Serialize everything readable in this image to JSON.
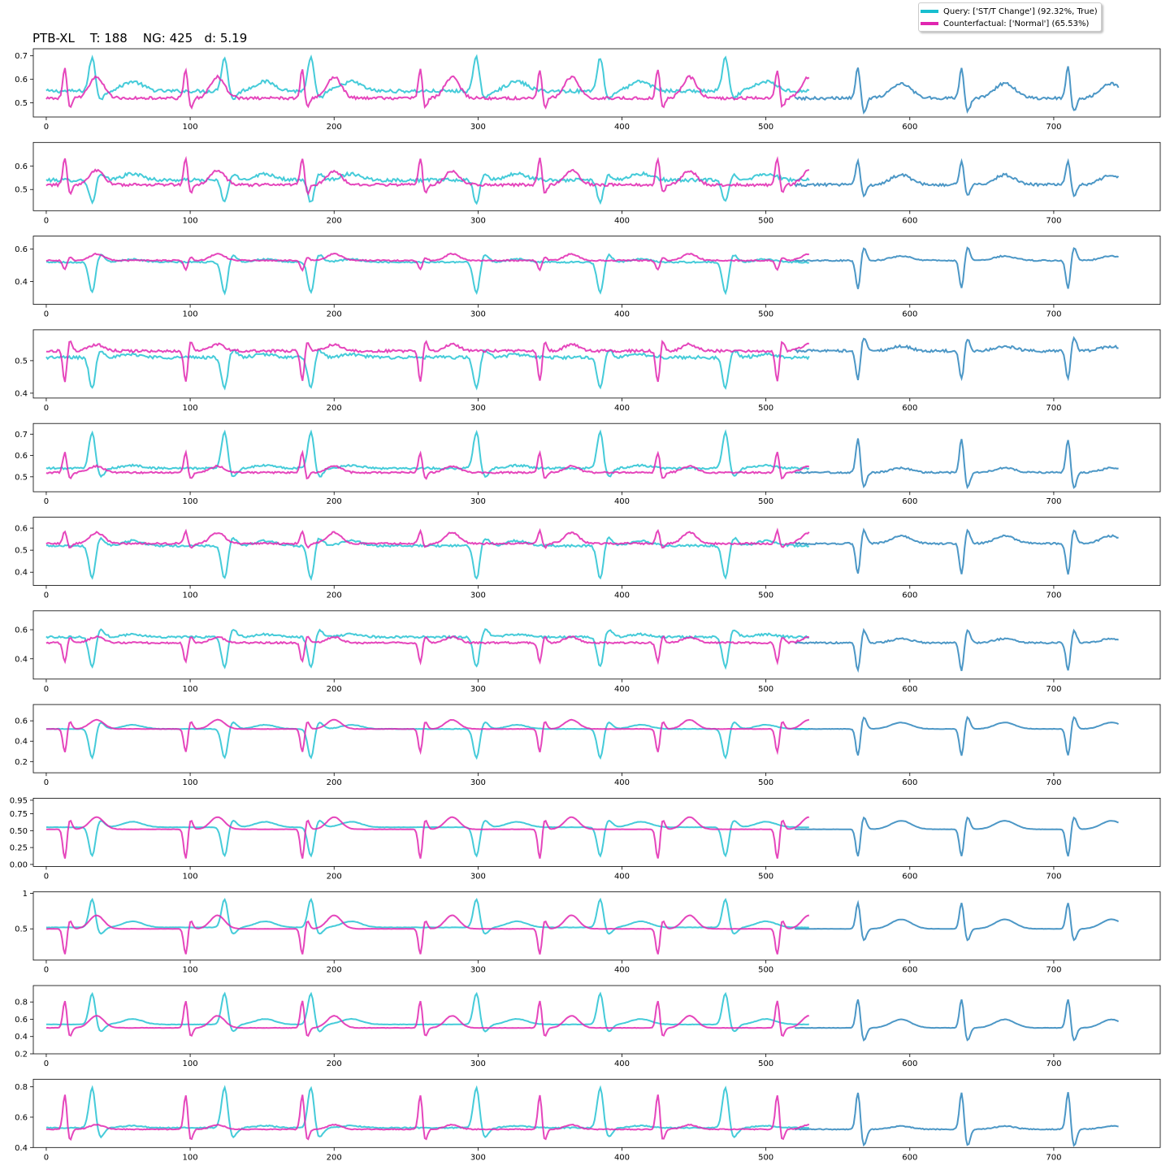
{
  "title": "PTB-XL    T: 188    NG: 425   d: 5.19",
  "legend": {
    "query_label": "Query: ['ST/T Change'] (92.32%, True)",
    "counterfactual_label": "Counterfactual: ['Normal'] (65.53%)"
  },
  "colors": {
    "query": "#17becf",
    "counterfactual": "#e026b0",
    "shared": "#4c97c6"
  },
  "chart_data": {
    "type": "line",
    "grid": false,
    "legend_position": "top-right",
    "x_range": [
      0,
      745
    ],
    "xticks": [
      0,
      100,
      200,
      300,
      400,
      500,
      600,
      700
    ],
    "counterfactual_end": 530,
    "panels": [
      {
        "yticks": [
          0.5,
          0.6,
          0.7
        ],
        "ylim": [
          0.44,
          0.73
        ],
        "baseline": 0.52,
        "amp": 0.13,
        "wave_t": 0.09,
        "noise": 0.012,
        "q_base": 0.55,
        "q_amp": 0.15
      },
      {
        "yticks": [
          0.5,
          0.6
        ],
        "ylim": [
          0.41,
          0.7
        ],
        "baseline": 0.52,
        "amp": 0.12,
        "wave_t": 0.06,
        "noise": 0.012,
        "q_base": 0.54,
        "q_amp": -0.1
      },
      {
        "yticks": [
          0.4,
          0.6
        ],
        "ylim": [
          0.26,
          0.68
        ],
        "baseline": 0.53,
        "amp": -0.06,
        "wave_t": 0.04,
        "noise": 0.008,
        "q_base": 0.52,
        "q_amp": -0.2
      },
      {
        "yticks": [
          0.4,
          0.5
        ],
        "ylim": [
          0.385,
          0.595
        ],
        "baseline": 0.53,
        "amp": -0.1,
        "wave_t": 0.02,
        "noise": 0.008,
        "q_base": 0.51,
        "q_amp": -0.1
      },
      {
        "yticks": [
          0.5,
          0.6,
          0.7
        ],
        "ylim": [
          0.43,
          0.75
        ],
        "baseline": 0.52,
        "amp": 0.1,
        "wave_t": 0.03,
        "noise": 0.008,
        "q_base": 0.54,
        "q_amp": 0.18
      },
      {
        "yticks": [
          0.4,
          0.5,
          0.6
        ],
        "ylim": [
          0.34,
          0.65
        ],
        "baseline": 0.53,
        "amp": 0.06,
        "wave_t": 0.05,
        "noise": 0.008,
        "q_base": 0.52,
        "q_amp": -0.16
      },
      {
        "yticks": [
          0.4,
          0.6
        ],
        "ylim": [
          0.26,
          0.73
        ],
        "baseline": 0.51,
        "amp": -0.14,
        "wave_t": 0.04,
        "noise": 0.012,
        "q_base": 0.55,
        "q_amp": -0.22
      },
      {
        "yticks": [
          0.2,
          0.4,
          0.6
        ],
        "ylim": [
          0.09,
          0.76
        ],
        "baseline": 0.52,
        "amp": -0.24,
        "wave_t": 0.09,
        "noise": 0.004,
        "q_base": 0.52,
        "q_amp": -0.3
      },
      {
        "yticks": [
          0.0,
          0.25,
          0.5,
          0.75,
          0.95
        ],
        "ytick_labels": [
          "0.00",
          "0.25",
          "0.50",
          "0.75",
          "0.95"
        ],
        "ylim": [
          -0.03,
          0.98
        ],
        "baseline": 0.52,
        "amp": -0.46,
        "wave_t": 0.18,
        "noise": 0.004,
        "q_base": 0.55,
        "q_amp": -0.45
      },
      {
        "yticks": [
          0.5,
          1.0
        ],
        "ylim": [
          0.06,
          1.02
        ],
        "baseline": 0.5,
        "amp": -0.38,
        "wave_t": 0.19,
        "noise": 0.004,
        "q_base": 0.52,
        "q_amp": 0.42
      },
      {
        "yticks": [
          0.2,
          0.4,
          0.6,
          0.8
        ],
        "ylim": [
          0.2,
          0.99
        ],
        "baseline": 0.5,
        "amp": 0.33,
        "wave_t": 0.14,
        "noise": 0.004,
        "q_base": 0.54,
        "q_amp": 0.38
      },
      {
        "yticks": [
          0.4,
          0.6,
          0.8
        ],
        "ylim": [
          0.4,
          0.85
        ],
        "baseline": 0.52,
        "amp": 0.24,
        "wave_t": 0.03,
        "noise": 0.006,
        "q_base": 0.53,
        "q_amp": 0.28
      }
    ]
  }
}
